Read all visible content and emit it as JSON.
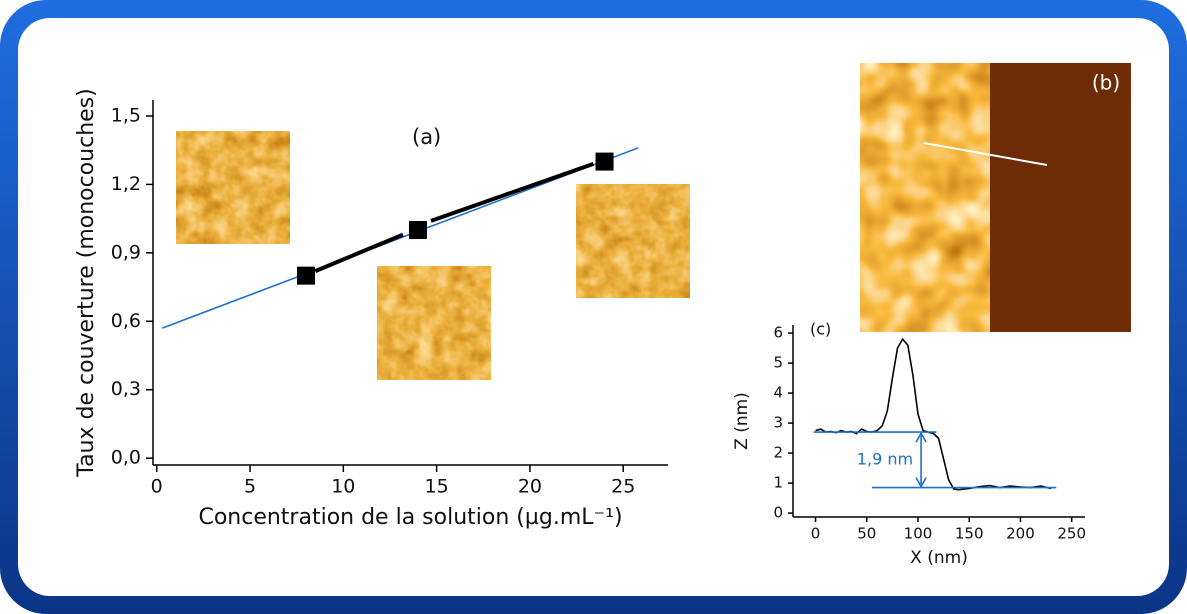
{
  "chart_data": [
    {
      "type": "scatter",
      "annotation": "(a)",
      "x_label": "Concentration de la solution (µg.mL⁻¹)",
      "y_label": "Taux de couverture (monocouches)",
      "xlim": [
        -0.2,
        27.4
      ],
      "ylim": [
        -0.03,
        1.57
      ],
      "xticks": [
        0,
        5,
        10,
        15,
        20,
        25
      ],
      "yticks": [
        {
          "value": 0,
          "label": "0,0"
        },
        {
          "value": 0.3,
          "label": "0,3"
        },
        {
          "value": 0.6,
          "label": "0,6"
        },
        {
          "value": 0.9,
          "label": "0,9"
        },
        {
          "value": 1.2,
          "label": "1,2"
        },
        {
          "value": 1.5,
          "label": "1,5"
        }
      ],
      "series": [
        {
          "style": "line",
          "color": "#1f6fd0",
          "x": [
            0.3,
            25.8
          ],
          "values": [
            0.57,
            1.36
          ]
        },
        {
          "style": "thick-line",
          "color": "#000000",
          "x": [
            8.5,
            13.2,
            null,
            14.7,
            23.4
          ],
          "values": [
            0.82,
            0.98,
            null,
            1.04,
            1.29
          ]
        },
        {
          "style": "square",
          "color": "#000000",
          "x": [
            8,
            14,
            24
          ],
          "values": [
            0.8,
            1.0,
            1.3
          ]
        }
      ]
    },
    {
      "type": "line",
      "annotation": "(c)",
      "annotation_color": "#1f6fd0",
      "delta_label": "1,9 nm",
      "x_label": "X (nm)",
      "y_label": "Z (nm)",
      "xlim": [
        -22,
        263
      ],
      "ylim": [
        -0.13,
        6.27
      ],
      "xticks": [
        0,
        50,
        100,
        150,
        200,
        250
      ],
      "yticks": [
        0,
        1,
        2,
        3,
        4,
        5,
        6
      ],
      "series": [
        {
          "style": "line",
          "color": "#000000",
          "x": [
            0,
            5,
            10,
            15,
            20,
            25,
            30,
            35,
            40,
            45,
            50,
            55,
            60,
            65,
            70,
            75,
            80,
            85,
            90,
            95,
            100,
            105,
            110,
            115,
            120,
            125,
            130,
            135,
            140,
            150,
            160,
            170,
            180,
            190,
            200,
            210,
            220,
            230
          ],
          "values": [
            2.75,
            2.8,
            2.7,
            2.72,
            2.68,
            2.75,
            2.7,
            2.72,
            2.65,
            2.8,
            2.72,
            2.7,
            2.75,
            2.9,
            3.4,
            4.5,
            5.5,
            5.8,
            5.6,
            4.6,
            3.3,
            2.75,
            2.7,
            2.65,
            2.5,
            1.8,
            1.1,
            0.8,
            0.78,
            0.82,
            0.88,
            0.92,
            0.85,
            0.9,
            0.87,
            0.85,
            0.9,
            0.82
          ]
        },
        {
          "style": "line",
          "color": "#1f6fd0",
          "x": [
            -2,
            118
          ],
          "values": [
            2.7,
            2.7
          ]
        },
        {
          "style": "line",
          "color": "#1f6fd0",
          "x": [
            55,
            235
          ],
          "values": [
            0.85,
            0.85
          ]
        }
      ]
    }
  ],
  "image_panel": {
    "label": "(b)"
  }
}
